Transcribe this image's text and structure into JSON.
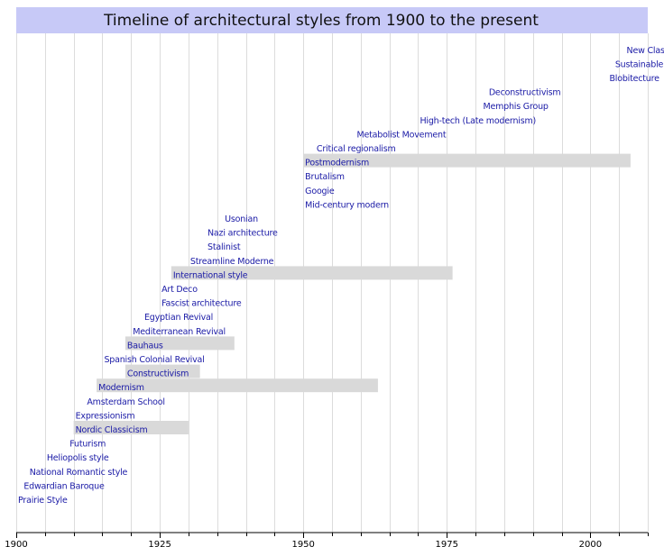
{
  "chart_data": {
    "type": "timeline",
    "title": "Timeline of architectural styles from 1900 to the present",
    "xlim": [
      1900,
      2010
    ],
    "x_ticks": [
      1900,
      1925,
      1950,
      1975,
      2000
    ],
    "minor_tick_step": 5,
    "grid": true,
    "colors": {
      "title_band": "#c7c9f7",
      "label": "#1a1aa6",
      "bar": "#d9d9d9"
    },
    "events": [
      {
        "label": "Prairie Style",
        "start": 1900
      },
      {
        "label": "Edwardian Baroque",
        "start": 1901
      },
      {
        "label": "National Romantic style",
        "start": 1902
      },
      {
        "label": "Heliopolis style",
        "start": 1905
      },
      {
        "label": "Futurism",
        "start": 1909
      },
      {
        "label": "Nordic Classicism",
        "start": 1910,
        "end": 1930
      },
      {
        "label": "Expressionism",
        "start": 1910
      },
      {
        "label": "Amsterdam School",
        "start": 1912
      },
      {
        "label": "Modernism",
        "start": 1914,
        "end": 1963
      },
      {
        "label": "Constructivism",
        "start": 1919,
        "end": 1932
      },
      {
        "label": "Spanish Colonial Revival",
        "start": 1915
      },
      {
        "label": "Bauhaus",
        "start": 1919,
        "end": 1938
      },
      {
        "label": "Mediterranean Revival",
        "start": 1920
      },
      {
        "label": "Egyptian Revival",
        "start": 1922
      },
      {
        "label": "Fascist architecture",
        "start": 1925
      },
      {
        "label": "Art Deco",
        "start": 1925
      },
      {
        "label": "International style",
        "start": 1927,
        "end": 1976
      },
      {
        "label": "Streamline Moderne",
        "start": 1930
      },
      {
        "label": "Stalinist",
        "start": 1933
      },
      {
        "label": "Nazi architecture",
        "start": 1933
      },
      {
        "label": "Usonian",
        "start": 1936
      },
      {
        "label": "Mid-century modern",
        "start": 1950
      },
      {
        "label": "Googie",
        "start": 1950
      },
      {
        "label": "Brutalism",
        "start": 1950
      },
      {
        "label": "Postmodernism",
        "start": 1950,
        "end": 2007
      },
      {
        "label": "Critical regionalism",
        "start": 1952
      },
      {
        "label": "Metabolist Movement",
        "start": 1959
      },
      {
        "label": "High-tech (Late modernism)",
        "start": 1970
      },
      {
        "label": "Memphis Group",
        "start": 1981
      },
      {
        "label": "Deconstructivism",
        "start": 1982
      },
      {
        "label": "Blobitecture",
        "start": 2003
      },
      {
        "label": "Sustainable",
        "start": 2004
      },
      {
        "label": "New Class",
        "start": 2006
      }
    ]
  }
}
